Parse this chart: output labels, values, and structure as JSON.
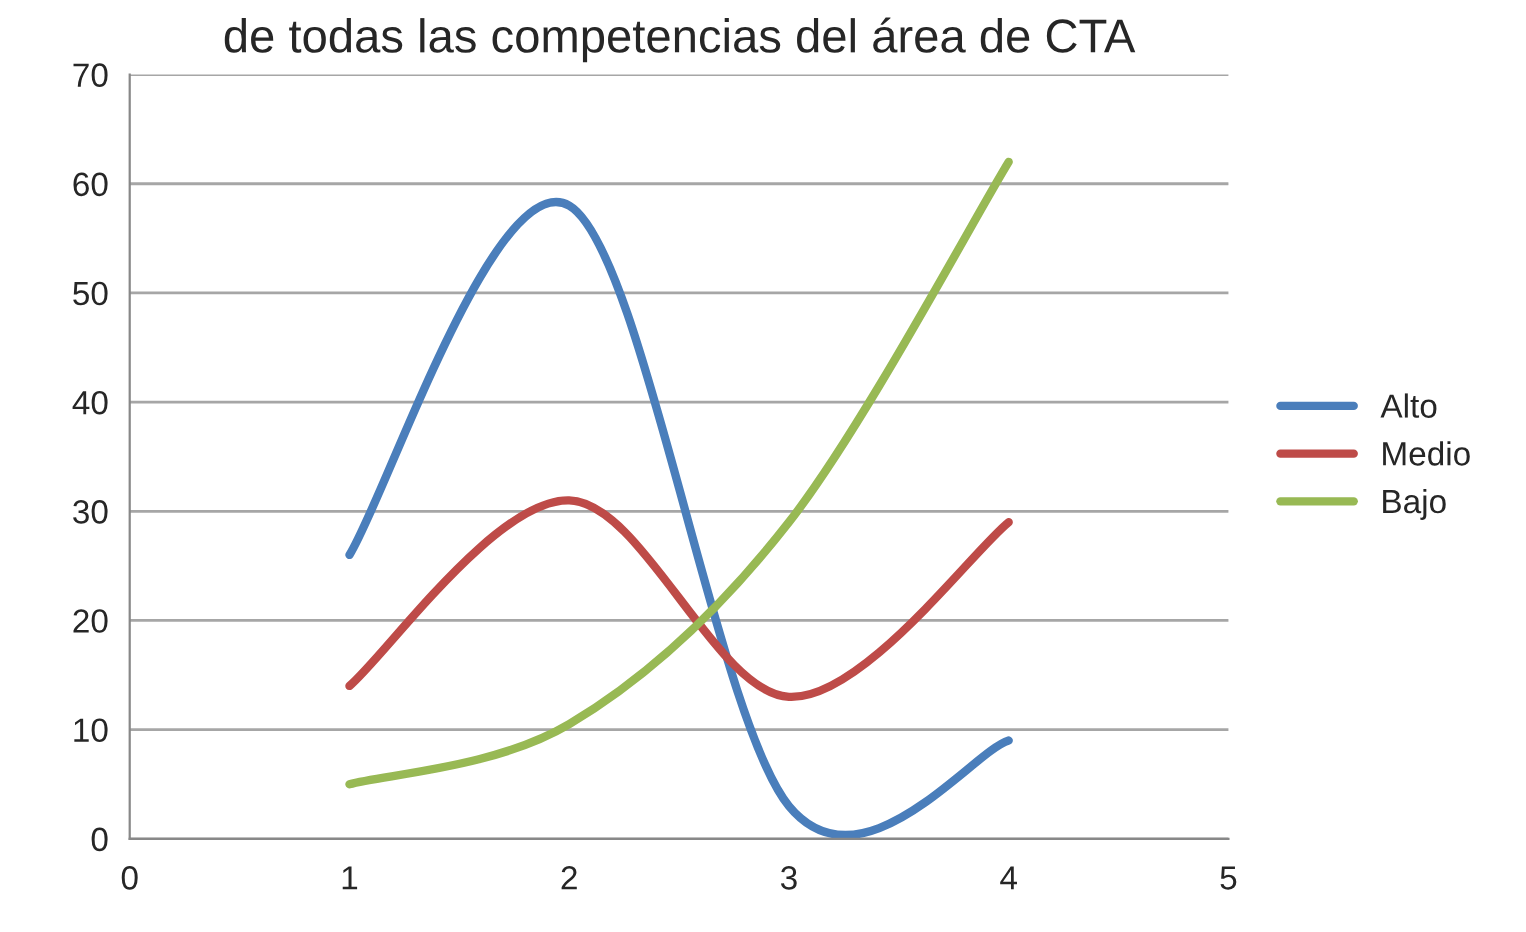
{
  "chart_data": {
    "type": "line",
    "title": "de todas las competencias del área de CTA",
    "x": [
      1,
      2,
      3,
      4
    ],
    "series": [
      {
        "name": "Alto",
        "color": "#4a7ebb",
        "values": [
          26,
          58,
          3,
          9
        ]
      },
      {
        "name": "Medio",
        "color": "#be4b48",
        "values": [
          14,
          31,
          13,
          29
        ]
      },
      {
        "name": "Bajo",
        "color": "#98b954",
        "values": [
          5,
          10.5,
          29,
          62
        ]
      }
    ],
    "xlim": [
      0,
      5
    ],
    "xticks": [
      0,
      1,
      2,
      3,
      4,
      5
    ],
    "ylim": [
      0,
      70
    ],
    "yticks": [
      0,
      10,
      20,
      30,
      40,
      50,
      60,
      70
    ],
    "grid": "y",
    "legend": "right",
    "marker": "none",
    "line_style": "solid"
  }
}
